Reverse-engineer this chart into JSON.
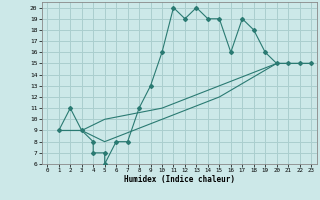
{
  "xlabel": "Humidex (Indice chaleur)",
  "bg_color": "#cce8e8",
  "line_color": "#2a7a72",
  "grid_color": "#aacece",
  "xlim": [
    -0.5,
    23.5
  ],
  "ylim": [
    6,
    20.5
  ],
  "xticks": [
    0,
    1,
    2,
    3,
    4,
    5,
    6,
    7,
    8,
    9,
    10,
    11,
    12,
    13,
    14,
    15,
    16,
    17,
    18,
    19,
    20,
    21,
    22,
    23
  ],
  "yticks": [
    6,
    7,
    8,
    9,
    10,
    11,
    12,
    13,
    14,
    15,
    16,
    17,
    18,
    19,
    20
  ],
  "line1_x": [
    1,
    2,
    3,
    4,
    4,
    5,
    5,
    6,
    7,
    8,
    9,
    10,
    11,
    12,
    13,
    14,
    15,
    16,
    17,
    18,
    19,
    20,
    21,
    22,
    23
  ],
  "line1_y": [
    9,
    11,
    9,
    8,
    7,
    7,
    6,
    8,
    8,
    11,
    13,
    16,
    20,
    19,
    20,
    19,
    19,
    16,
    19,
    18,
    16,
    15,
    15,
    15,
    15
  ],
  "line2_x": [
    1,
    3,
    5,
    10,
    15,
    20,
    23
  ],
  "line2_y": [
    9,
    9,
    10,
    11,
    13,
    15,
    15
  ],
  "line3_x": [
    1,
    3,
    5,
    10,
    15,
    20,
    23
  ],
  "line3_y": [
    9,
    9,
    8,
    10,
    12,
    15,
    15
  ]
}
